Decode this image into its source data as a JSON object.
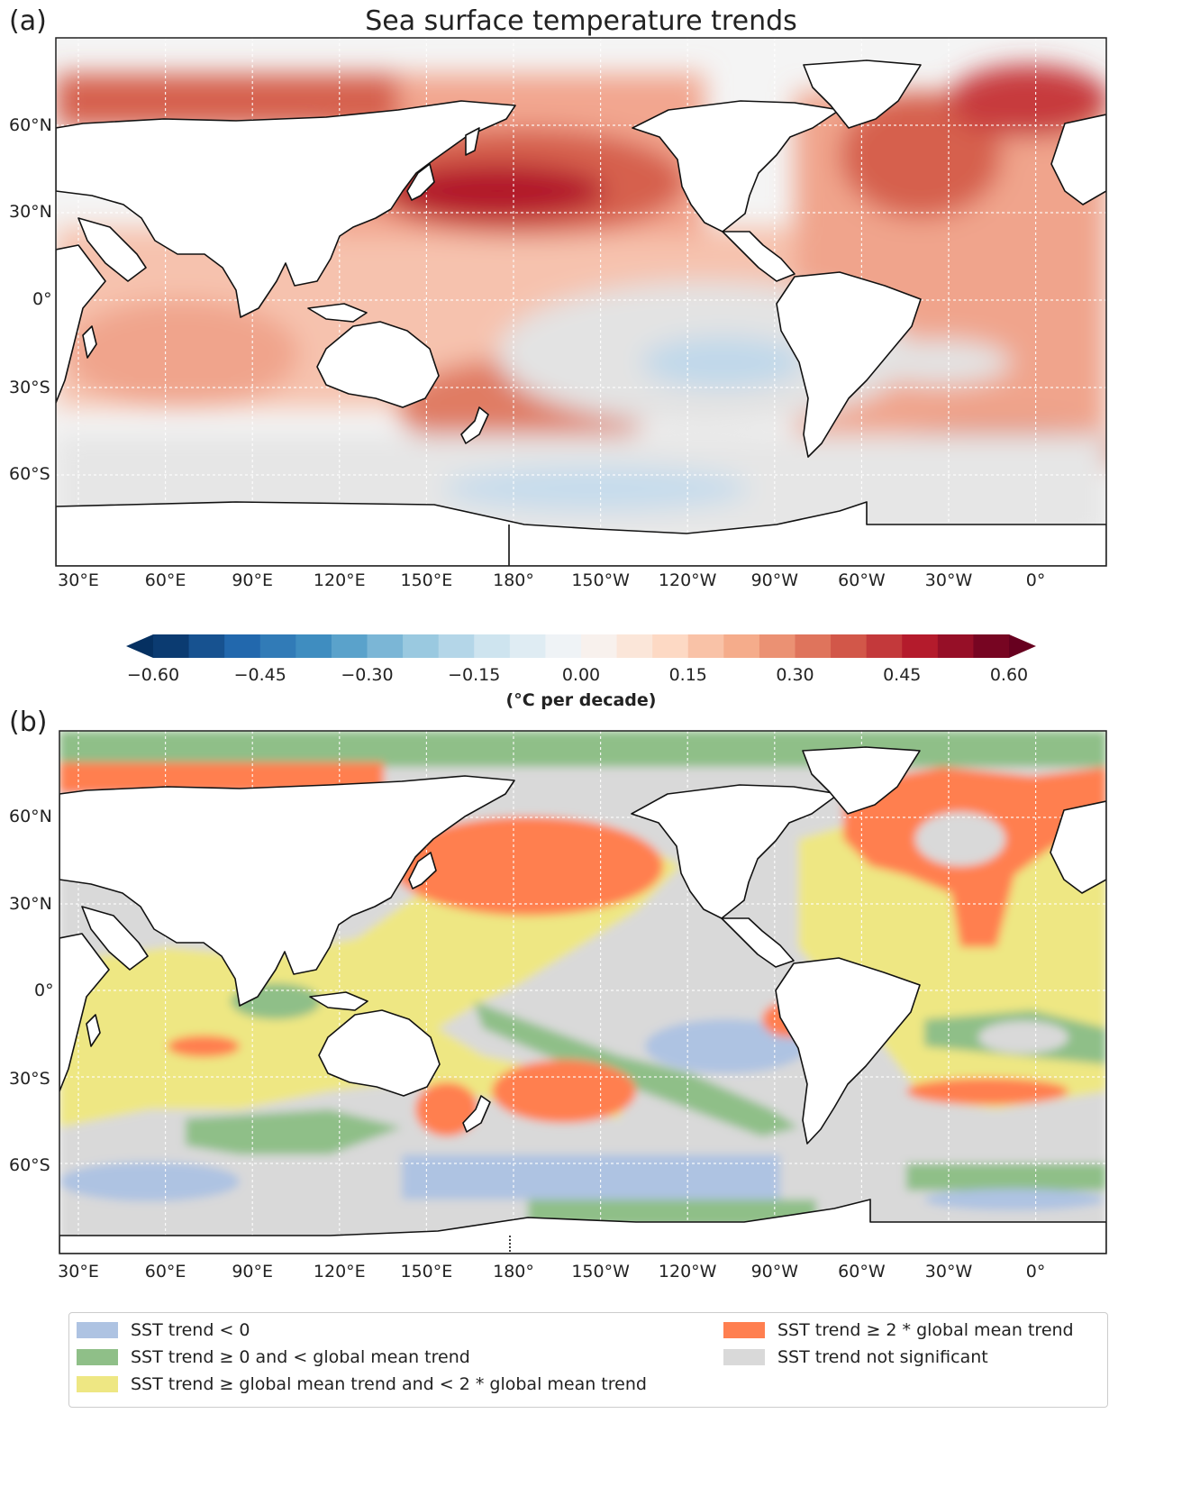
{
  "panel_a": {
    "label": "(a)",
    "title": "Sea surface temperature trends",
    "lat_ticks": [
      "60°N",
      "30°N",
      "0°",
      "30°S",
      "60°S"
    ],
    "lon_ticks": [
      "30°E",
      "60°E",
      "90°E",
      "120°E",
      "150°E",
      "180°",
      "150°W",
      "120°W",
      "90°W",
      "60°W",
      "30°W",
      "0°"
    ]
  },
  "colorbar": {
    "range": [
      -0.6,
      0.6
    ],
    "step": 0.05,
    "ticks": [
      "−0.60",
      "−0.45",
      "−0.30",
      "−0.15",
      "0.00",
      "0.15",
      "0.30",
      "0.45",
      "0.60"
    ],
    "unit_label": "(°C per decade)",
    "cmap": "RdBu_r",
    "extend": "both"
  },
  "panel_b": {
    "label": "(b)",
    "lat_ticks": [
      "60°N",
      "30°N",
      "0°",
      "30°S",
      "60°S"
    ],
    "lon_ticks": [
      "30°E",
      "60°E",
      "90°E",
      "120°E",
      "150°E",
      "180°",
      "150°W",
      "120°W",
      "90°W",
      "60°W",
      "30°W",
      "0°"
    ]
  },
  "legend": {
    "items": [
      {
        "label": "SST trend < 0",
        "color": "#aec3e2"
      },
      {
        "label": "SST trend ≥ 0 and < global mean trend",
        "color": "#8fbf88"
      },
      {
        "label": "SST trend ≥ global mean trend and < 2 * global mean trend",
        "color": "#eee783"
      },
      {
        "label": "SST trend ≥ 2 * global mean trend",
        "color": "#ff7f50"
      },
      {
        "label": "SST trend not significant",
        "color": "#d9d9d9"
      }
    ]
  },
  "colors": {
    "ocean_bg": "#f4f4f4",
    "land": "#ffffff",
    "coast": "#000000"
  }
}
